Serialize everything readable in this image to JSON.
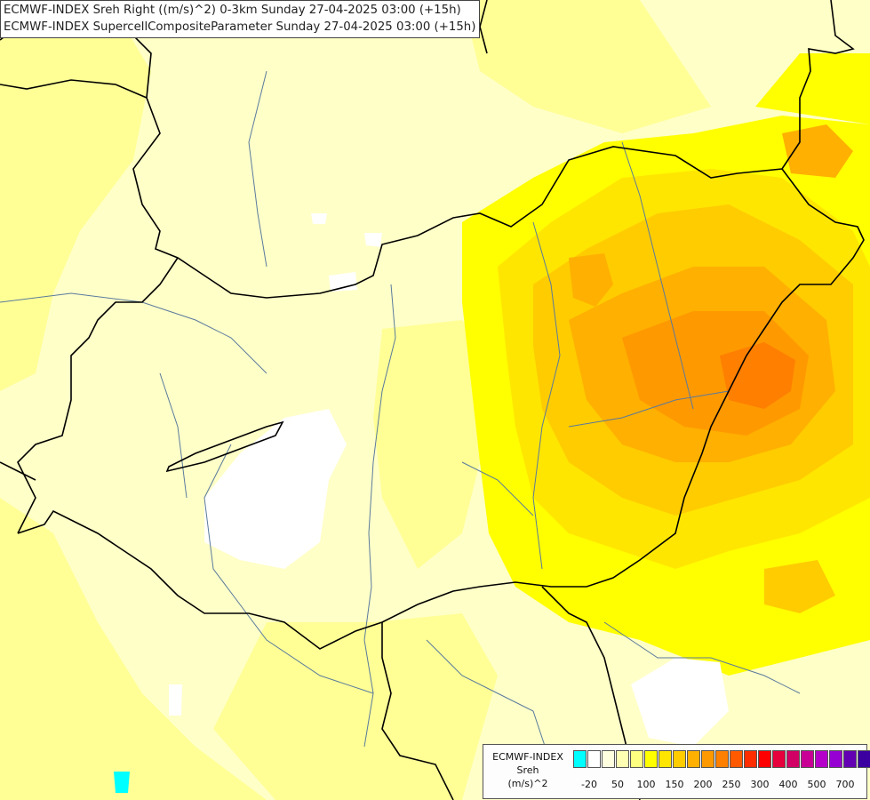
{
  "titles": {
    "line1": "ECMWF-INDEX Sreh Right ((m/s)^2) 0-3km Sunday 27-04-2025 03:00 (+15h)",
    "line2": "ECMWF-INDEX SupercellCompositeParameter Sunday 27-04-2025 03:00 (+15h)"
  },
  "legend": {
    "line1": "ECMWF-INDEX",
    "line2": "Sreh",
    "line3": "(m/s)^2",
    "colors": [
      "#00ffff",
      "#ffffff",
      "#ffffe0",
      "#ffffb4",
      "#ffff80",
      "#ffff00",
      "#ffe600",
      "#ffcc00",
      "#ffb000",
      "#ff9900",
      "#ff7f00",
      "#ff5a00",
      "#ff2d00",
      "#ff0000",
      "#e6003c",
      "#d20064",
      "#c80096",
      "#b400c8",
      "#9600d2",
      "#6400b4",
      "#3c00a0",
      "#000078"
    ],
    "ticks": [
      "-20",
      "50",
      "100",
      "150",
      "200",
      "250",
      "300",
      "400",
      "500",
      "700"
    ]
  },
  "colors": {
    "pale": "#ffffc8",
    "white": "#ffffff",
    "light_yellow": "#ffff96",
    "yellow": "#ffff00",
    "yellow_orange": "#ffe600",
    "gold": "#ffcc00",
    "orange": "#ffb000",
    "deep_orange": "#ff9900",
    "dark_orange": "#ff7f00",
    "cyan": "#00ffff",
    "border": "#000000",
    "river": "#5a7a9c"
  }
}
